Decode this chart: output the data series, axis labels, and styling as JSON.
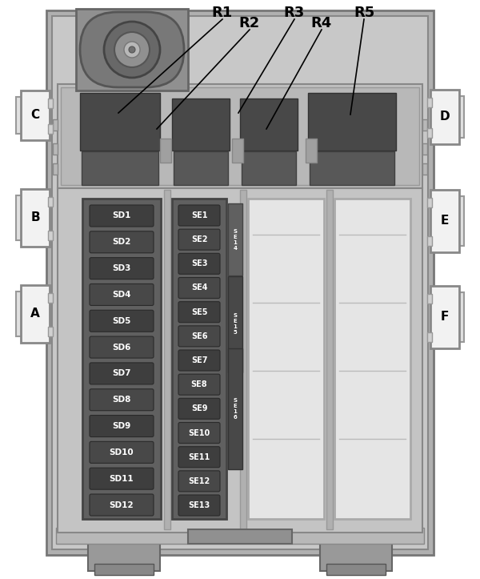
{
  "bg_color": "#ffffff",
  "sd_labels": [
    "SD1",
    "SD2",
    "SD3",
    "SD4",
    "SD5",
    "SD6",
    "SD7",
    "SD8",
    "SD9",
    "SD10",
    "SD11",
    "SD12"
  ],
  "se_labels": [
    "SE1",
    "SE2",
    "SE3",
    "SE4",
    "SE5",
    "SE6",
    "SE7",
    "SE8",
    "SE9",
    "SE10",
    "SE11",
    "SE12",
    "SE13"
  ],
  "relay_labels": [
    "R1",
    "R2",
    "R3",
    "R4",
    "R5"
  ],
  "side_labels_left": [
    "C",
    "B",
    "A"
  ],
  "side_labels_right": [
    "D",
    "E",
    "F"
  ],
  "outer_color": "#a8a8a8",
  "inner_color": "#c0c0c0",
  "fuse_block_color": "#5a5a5a",
  "fuse_color": "#404040",
  "white_block_color": "#e8e8e8"
}
